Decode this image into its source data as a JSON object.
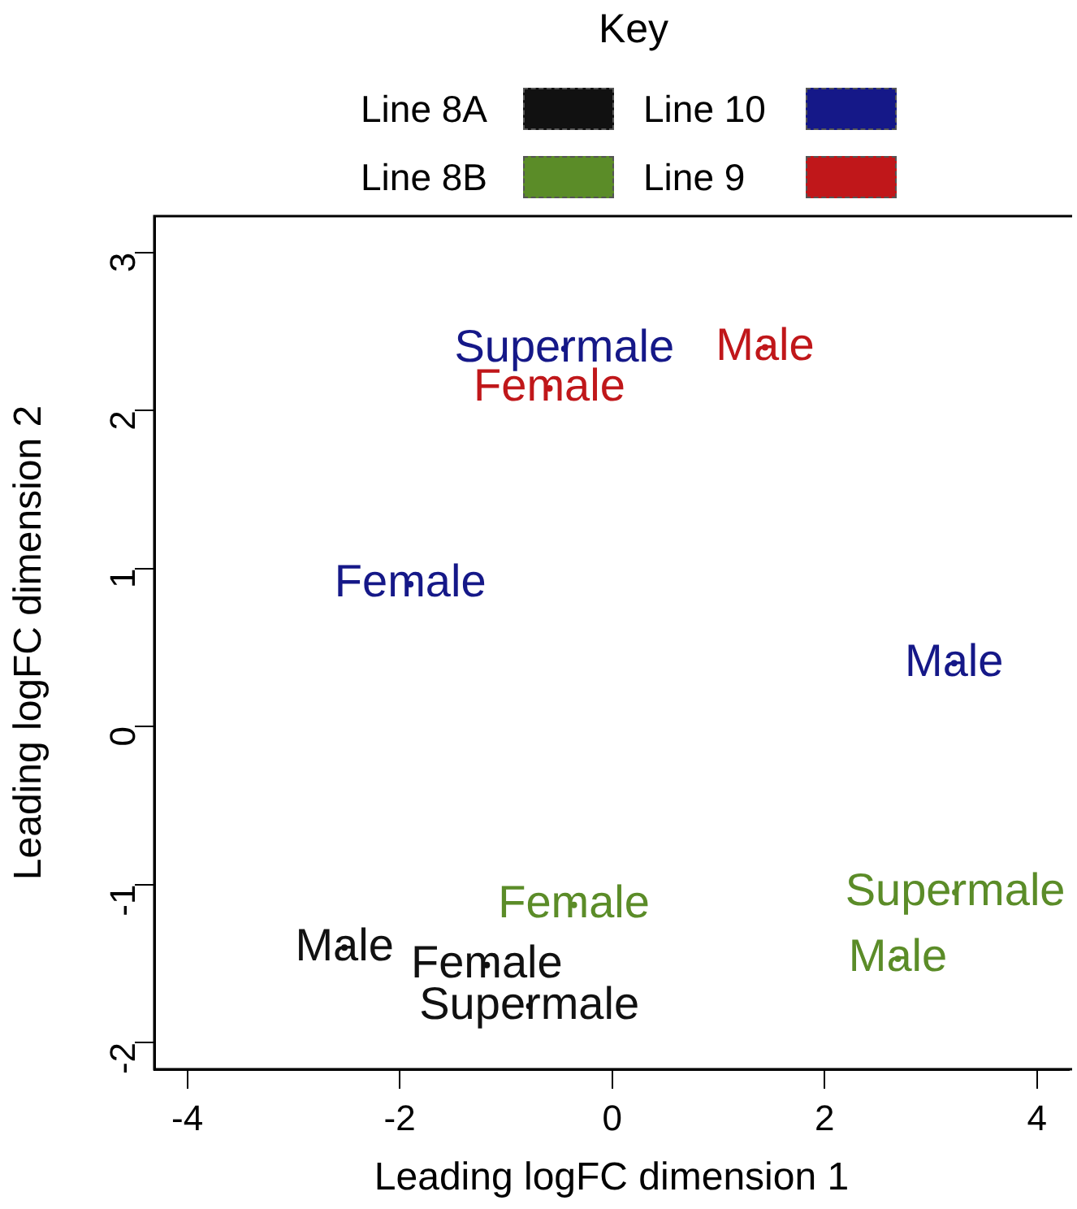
{
  "chart_data": {
    "type": "scatter",
    "xlabel": "Leading logFC dimension 1",
    "ylabel": "Leading logFC dimension 2",
    "legend_title": "Key",
    "legend": "top",
    "grid": false,
    "xlim": [
      -4.31,
      4.3
    ],
    "ylim": [
      -2.17,
      3.23
    ],
    "xticks": [
      -4,
      -2,
      0,
      2,
      4
    ],
    "yticks": [
      -2,
      -1,
      0,
      1,
      2,
      3
    ],
    "series": [
      {
        "name": "Line 8A",
        "color": "#111111",
        "x": [
          -2.52,
          -1.18,
          -0.78
        ],
        "values": [
          -1.4,
          -1.51,
          -1.77
        ],
        "value_labels": [
          "Male",
          "Female",
          "Supermale"
        ]
      },
      {
        "name": "Line 8B",
        "color": "#5b8c28",
        "x": [
          -0.36,
          3.23,
          2.69
        ],
        "values": [
          -1.13,
          -1.05,
          -1.47
        ],
        "value_labels": [
          "Female",
          "Supermale",
          "Male"
        ]
      },
      {
        "name": "Line 10",
        "color": "#151888",
        "x": [
          -0.45,
          -1.9,
          3.22
        ],
        "values": [
          2.39,
          0.9,
          0.4
        ],
        "value_labels": [
          "Supermale",
          "Female",
          "Male"
        ]
      },
      {
        "name": "Line 9",
        "color": "#c0171a",
        "x": [
          1.44,
          -0.59
        ],
        "values": [
          2.4,
          2.14
        ],
        "value_labels": [
          "Male",
          "Female"
        ]
      }
    ]
  }
}
